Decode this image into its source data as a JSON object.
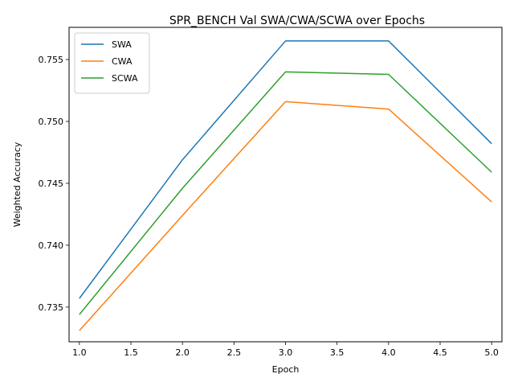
{
  "chart_data": {
    "type": "line",
    "title": "SPR_BENCH Val SWA/CWA/SCWA over Epochs",
    "xlabel": "Epoch",
    "ylabel": "Weighted Accuracy",
    "x": [
      1,
      2,
      3,
      4,
      5
    ],
    "xlim": [
      0.9,
      5.1
    ],
    "ylim": [
      0.7322,
      0.7576
    ],
    "x_ticks": [
      "1.0",
      "1.5",
      "2.0",
      "2.5",
      "3.0",
      "3.5",
      "4.0",
      "4.5",
      "5.0"
    ],
    "y_ticks": [
      "0.735",
      "0.740",
      "0.745",
      "0.750",
      "0.755"
    ],
    "grid": false,
    "legend_position": "upper left",
    "series": [
      {
        "name": "SWA",
        "color": "#1f77b4",
        "values": [
          0.7357,
          0.7469,
          0.7565,
          0.7565,
          0.7482
        ]
      },
      {
        "name": "CWA",
        "color": "#ff7f0e",
        "values": [
          0.7331,
          0.7424,
          0.7516,
          0.751,
          0.7435
        ]
      },
      {
        "name": "SCWA",
        "color": "#2ca02c",
        "values": [
          0.7344,
          0.7446,
          0.754,
          0.7538,
          0.7459
        ]
      }
    ]
  }
}
